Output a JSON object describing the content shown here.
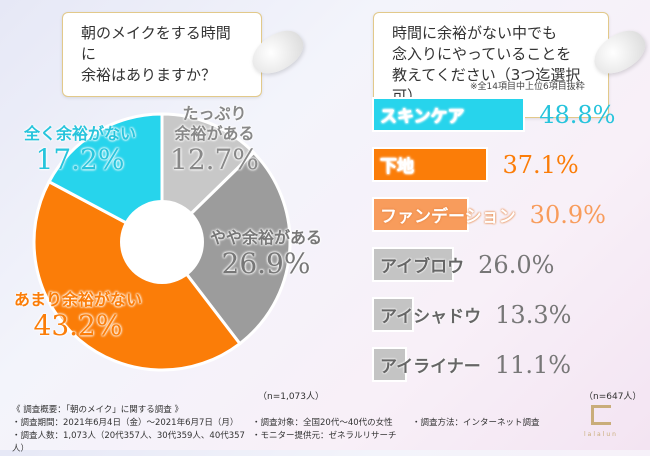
{
  "left": {
    "question": [
      "朝のメイクをする時間に",
      "余裕はありますか？"
    ],
    "n": "（n=1,073人）"
  },
  "right": {
    "question": [
      "時間に余裕がない中でも",
      "念入りにやっていることを",
      "教えてください（3つ迄選択可）"
    ],
    "note": "※全14項目中上位6項目抜粋",
    "n": "（n=647人）"
  },
  "chart_data": [
    {
      "type": "pie",
      "title": "朝のメイクをする時間に余裕はありますか？",
      "slices": [
        {
          "label": "たっぷり余裕がある",
          "lines": [
            "たっぷり",
            "余裕がある"
          ],
          "value": 12.7,
          "display": "12.7%",
          "color": "#c8c8c8",
          "text_color": "#888888"
        },
        {
          "label": "やや余裕がある",
          "lines": [
            "やや余裕がある"
          ],
          "value": 26.9,
          "display": "26.9%",
          "color": "#9c9c9c",
          "text_color": "#777777"
        },
        {
          "label": "あまり余裕がない",
          "lines": [
            "あまり余裕がない"
          ],
          "value": 43.2,
          "display": "43.2%",
          "color": "#fb7d08",
          "text_color": "#fb7d08"
        },
        {
          "label": "全く余裕がない",
          "lines": [
            "全く余裕がない"
          ],
          "value": 17.2,
          "display": "17.2%",
          "color": "#27d4ec",
          "text_color": "#27c4dc"
        }
      ]
    },
    {
      "type": "bar",
      "orientation": "horizontal",
      "title": "時間に余裕がない中でも念入りにやっていることを教えてください（3つ迄選択可）",
      "unit": "%",
      "categories": [
        "スキンケア",
        "下地",
        "ファンデーション",
        "アイブロウ",
        "アイシャドウ",
        "アイライナー"
      ],
      "values": [
        48.8,
        37.1,
        30.9,
        26.0,
        13.3,
        11.1
      ],
      "display": [
        "48.8%",
        "37.1%",
        "30.9%",
        "26.0%",
        "13.3%",
        "11.1%"
      ],
      "colors": [
        "#27d4ec",
        "#fb7d08",
        "#f89c5c",
        "#c4c4c4",
        "#c4c4c4",
        "#c4c4c4"
      ],
      "label_colors": [
        "#ffffff",
        "#ffffff",
        "#ffffff",
        "#666666",
        "#666666",
        "#666666"
      ],
      "value_colors": [
        "#27c4dc",
        "#fb7d08",
        "#f89c5c",
        "#777777",
        "#777777",
        "#777777"
      ]
    }
  ],
  "footer": {
    "title": "《 調査概要：「朝のメイク」に関する調査 》",
    "items": [
      "・調査期間：2021年6月4日（金）〜2021年6月7日（月）",
      "・調査対象：全国20代〜40代の女性",
      "・調査方法：インターネット調査",
      "・調査人数：1,073人（20代357人、30代359人、40代357人）",
      "・モニター提供元：ゼネラルリサーチ"
    ]
  },
  "logo": {
    "text": "lalalun"
  }
}
